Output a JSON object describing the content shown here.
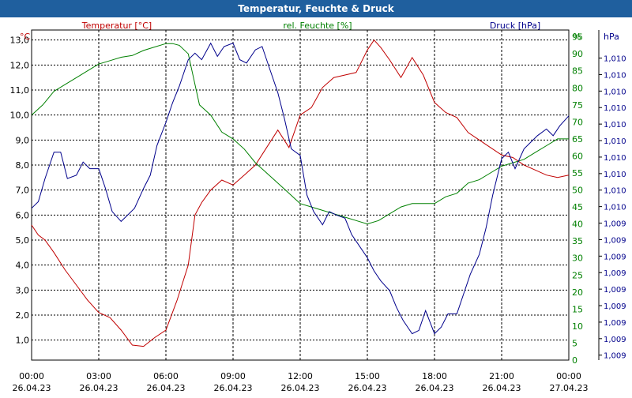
{
  "window": {
    "title": "Temperatur, Feuchte & Druck"
  },
  "chart_data": {
    "type": "line",
    "title": "Temperatur, Feuchte & Druck",
    "colors": {
      "temperature": "#c00000",
      "humidity": "#008000",
      "pressure": "#00008b",
      "grid": "#000000",
      "title_bar": "#1f5f9e"
    },
    "x_ticks": [
      {
        "time": "00:00",
        "date": "26.04.23"
      },
      {
        "time": "03:00",
        "date": "26.04.23"
      },
      {
        "time": "06:00",
        "date": "26.04.23"
      },
      {
        "time": "09:00",
        "date": "26.04.23"
      },
      {
        "time": "12:00",
        "date": "26.04.23"
      },
      {
        "time": "15:00",
        "date": "26.04.23"
      },
      {
        "time": "18:00",
        "date": "26.04.23"
      },
      {
        "time": "21:00",
        "date": "26.04.23"
      },
      {
        "time": "00:00",
        "date": "27.04.23"
      }
    ],
    "x_range_hours": [
      0,
      24
    ],
    "axes": {
      "temperature": {
        "unit": "°C",
        "label": "Temperatur [°C]",
        "ylim": [
          0.2,
          13.4
        ],
        "ticks": [
          "1,0",
          "2,0",
          "3,0",
          "4,0",
          "5,0",
          "6,0",
          "7,0",
          "8,0",
          "9,0",
          "10,0",
          "11,0",
          "12,0",
          "13,0"
        ],
        "tick_values": [
          1,
          2,
          3,
          4,
          5,
          6,
          7,
          8,
          9,
          10,
          11,
          12,
          13
        ]
      },
      "humidity": {
        "unit": "%",
        "label": "rel. Feuchte [%]",
        "ylim": [
          0,
          97
        ],
        "ticks": [
          "0",
          "5",
          "10",
          "15",
          "20",
          "25",
          "30",
          "35",
          "40",
          "45",
          "50",
          "55",
          "60",
          "65",
          "70",
          "75",
          "80",
          "85",
          "90",
          "95"
        ],
        "tick_values": [
          0,
          5,
          10,
          15,
          20,
          25,
          30,
          35,
          40,
          45,
          50,
          55,
          60,
          65,
          70,
          75,
          80,
          85,
          90,
          95
        ]
      },
      "pressure": {
        "unit": "hPa",
        "label": "Druck [hPa]",
        "ylim": [
          0,
          100
        ],
        "ticks": [
          "1,010",
          "1,010",
          "1,010",
          "1,010",
          "1,010",
          "1,010",
          "1,010",
          "1,010",
          "1,010",
          "1,010",
          "1,009",
          "1,009",
          "1,009",
          "1,009",
          "1,009",
          "1,009",
          "1,009",
          "1,009",
          "1,009"
        ],
        "tick_values": [
          91.5,
          86.5,
          81.5,
          76.5,
          71.5,
          66.5,
          61.5,
          56.5,
          51.5,
          46.5,
          41.5,
          36.5,
          31.5,
          26.5,
          21.5,
          16.5,
          11.5,
          6.5,
          1.5
        ]
      }
    },
    "series": [
      {
        "name": "Temperatur [°C]",
        "axis": "temperature",
        "x": [
          0,
          0.3,
          0.6,
          1,
          1.5,
          2,
          2.5,
          3,
          3.5,
          4,
          4.5,
          5,
          5.5,
          6,
          6.5,
          7,
          7.3,
          7.6,
          8,
          8.5,
          9,
          9.5,
          10,
          10.5,
          11,
          11.5,
          12,
          12.5,
          13,
          13.5,
          14,
          14.5,
          15,
          15.3,
          15.6,
          16,
          16.5,
          17,
          17.5,
          18,
          18.5,
          19,
          19.5,
          20,
          20.5,
          21,
          21.5,
          22,
          22.5,
          23,
          23.5,
          24
        ],
        "values": [
          5.6,
          5.2,
          5.0,
          4.5,
          3.8,
          3.2,
          2.6,
          2.1,
          1.9,
          1.4,
          0.8,
          0.75,
          1.1,
          1.4,
          2.6,
          4.0,
          6.0,
          6.5,
          7.0,
          7.4,
          7.2,
          7.6,
          8.0,
          8.7,
          9.4,
          8.7,
          10.0,
          10.3,
          11.1,
          11.5,
          11.6,
          11.7,
          12.6,
          13.0,
          12.7,
          12.2,
          11.5,
          12.3,
          11.6,
          10.5,
          10.1,
          9.9,
          9.3,
          9.0,
          8.7,
          8.4,
          8.3,
          8.0,
          7.8,
          7.6,
          7.5,
          7.6
        ]
      },
      {
        "name": "rel. Feuchte [%]",
        "axis": "humidity",
        "x": [
          0,
          0.5,
          1,
          1.5,
          2,
          2.5,
          3,
          3.5,
          4,
          4.5,
          5,
          5.5,
          6,
          6.3,
          6.6,
          7,
          7.5,
          8,
          8.5,
          9,
          9.5,
          10,
          10.5,
          11,
          11.5,
          12,
          12.5,
          13,
          13.5,
          14,
          14.5,
          15,
          15.5,
          16,
          16.5,
          17,
          17.5,
          18,
          18.5,
          19,
          19.5,
          20,
          20.5,
          21,
          21.5,
          22,
          22.5,
          23,
          23.5,
          24
        ],
        "values": [
          72,
          75,
          79,
          81,
          83,
          85,
          87,
          88,
          89,
          89.5,
          91,
          92,
          93,
          93,
          92.5,
          90,
          75,
          72,
          67,
          65,
          62,
          58,
          55,
          52,
          49,
          46,
          45,
          44,
          43,
          42,
          41,
          40,
          41,
          43,
          45,
          46,
          46,
          46,
          48,
          49,
          52,
          53,
          55,
          57,
          58,
          59,
          61,
          63,
          65,
          65
        ]
      },
      {
        "name": "Druck [hPa]",
        "axis": "pressure",
        "x": [
          0,
          0.3,
          0.6,
          1,
          1.3,
          1.6,
          2,
          2.3,
          2.6,
          3,
          3.3,
          3.6,
          4,
          4.3,
          4.6,
          5,
          5.3,
          5.6,
          6,
          6.3,
          6.6,
          7,
          7.3,
          7.6,
          8,
          8.3,
          8.6,
          9,
          9.3,
          9.6,
          10,
          10.3,
          10.6,
          11,
          11.3,
          11.6,
          12,
          12.3,
          12.6,
          13,
          13.3,
          13.6,
          14,
          14.3,
          14.6,
          15,
          15.3,
          15.6,
          16,
          16.3,
          16.6,
          17,
          17.3,
          17.6,
          18,
          18.3,
          18.6,
          19,
          19.3,
          19.6,
          20,
          20.3,
          20.6,
          21,
          21.3,
          21.6,
          22,
          22.3,
          22.6,
          23,
          23.3,
          23.6,
          24
        ],
        "values": [
          46,
          48,
          55,
          63,
          63,
          55,
          56,
          60,
          58,
          58,
          52,
          45,
          42,
          44,
          46,
          52,
          56,
          65,
          72,
          78,
          83,
          91,
          93,
          91,
          96,
          92,
          95,
          96,
          91,
          90,
          94,
          95,
          89,
          81,
          73,
          64,
          62,
          50,
          45,
          41,
          45,
          44,
          43,
          38,
          35,
          31,
          27,
          24,
          21,
          16,
          12,
          8,
          9,
          15,
          8,
          10,
          14,
          14,
          20,
          26,
          32,
          40,
          50,
          61,
          63,
          58,
          64,
          66,
          68,
          70,
          68,
          71,
          74
        ]
      }
    ]
  }
}
